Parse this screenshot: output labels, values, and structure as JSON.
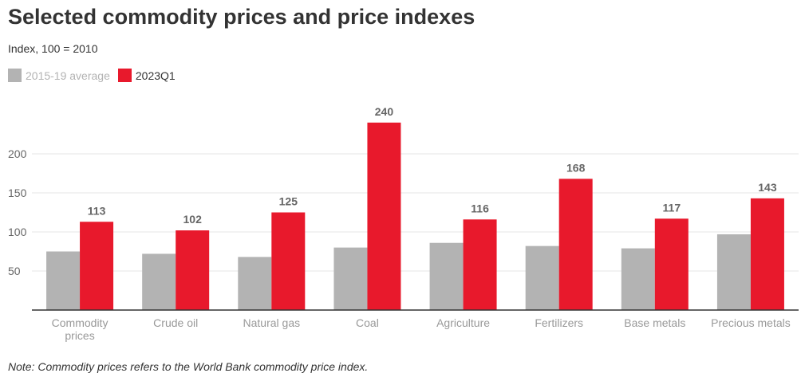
{
  "title": "Selected commodity prices and price indexes",
  "subtitle": "Index, 100 = 2010",
  "note": "Note: Commodity prices refers to the World Bank commodity price index.",
  "colors": {
    "series1": "#b3b3b3",
    "series2": "#e8192c"
  },
  "chart_data": {
    "type": "bar",
    "categories": [
      "Commodity prices",
      "Crude oil",
      "Natural gas",
      "Coal",
      "Agriculture",
      "Fertilizers",
      "Base metals",
      "Precious metals"
    ],
    "series": [
      {
        "name": "2015-19 average",
        "values": [
          75,
          72,
          68,
          80,
          86,
          82,
          79,
          97
        ]
      },
      {
        "name": "2023Q1",
        "values": [
          113,
          102,
          125,
          240,
          116,
          168,
          117,
          143
        ]
      }
    ],
    "yticks": [
      50,
      100,
      150,
      200
    ],
    "ylim": [
      0,
      250
    ],
    "grid": true,
    "data_labels_series": "2023Q1"
  }
}
